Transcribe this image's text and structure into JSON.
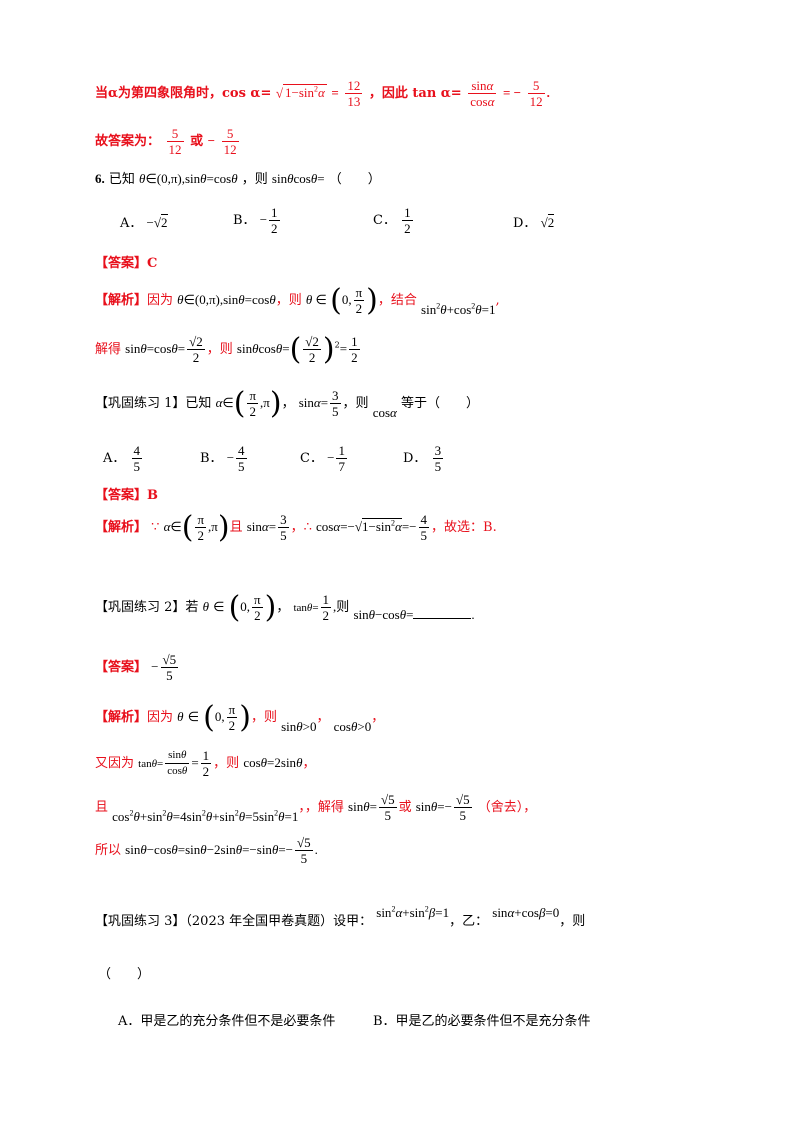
{
  "blocks": {
    "l01_a": "当α为第四象限角时，cos α=",
    "l01_b": "，因此 tan α=",
    "l02": "故答案为：",
    "l02_or": "或",
    "q6_num": "6.",
    "q6_text": "已知",
    "q6_then": "，则",
    "q6_paren": "（　　）",
    "q6_A": "A．",
    "q6_B": "B．",
    "q6_C": "C．",
    "q6_D": "D．",
    "ans6": "【答案】C",
    "an6_label": "【解析】",
    "an6_because": "因为",
    "an6_then": "，则",
    "an6_combine": "，结合",
    "an6_solve": "解得",
    "an6_then2": "，则",
    "p1_label": "【巩固练习 1】",
    "p1_known": "已知",
    "p1_then": "，则",
    "p1_eq": "等于（　　）",
    "p1_A": "A．",
    "p1_B": "B．",
    "p1_C": "C．",
    "p1_D": "D．",
    "ans1": "【答案】B",
    "an1_label": "【解析】",
    "an1_and": "且",
    "an1_choose": "，故选：B.",
    "p2_label": "【巩固练习 2】",
    "p2_if": "若",
    "p2_then": "则",
    "ans2_label": "【答案】",
    "an2_label": "【解析】",
    "an2_because": "因为",
    "an2_then": "，则",
    "an2_also": "又因为",
    "an2_then2": "，则",
    "an2_and": "且",
    "an2_solve": "，解得",
    "an2_or": "或",
    "an2_discard": "（舍去），",
    "an2_so": "所以",
    "p3_label": "【巩固练习 3】",
    "p3_text": "（2023 年全国甲卷真题）设甲：",
    "p3_yi": "，乙：",
    "p3_then": "，则",
    "p3_paren": "（　　）",
    "p3_A": "A．甲是乙的充分条件但不是必要条件",
    "p3_B": "B．甲是乙的必要条件但不是充分条件"
  },
  "colors": {
    "answer_red": "#e8101c"
  }
}
